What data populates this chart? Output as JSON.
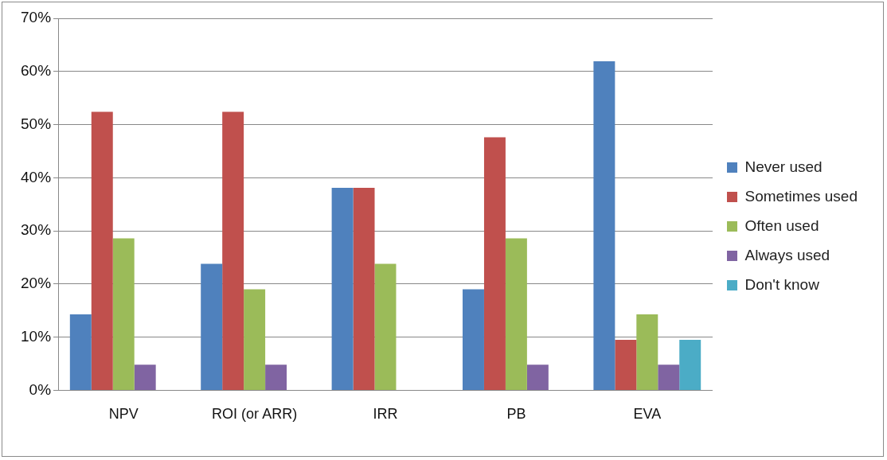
{
  "chart_data": {
    "type": "bar",
    "categories": [
      "NPV",
      "ROI (or ARR)",
      "IRR",
      "PB",
      "EVA"
    ],
    "series": [
      {
        "name": "Never used",
        "color": "#4f81bd",
        "values": [
          14.3,
          23.8,
          38.1,
          19.0,
          61.9
        ]
      },
      {
        "name": "Sometimes used",
        "color": "#c0504d",
        "values": [
          52.4,
          52.4,
          38.1,
          47.6,
          9.5
        ]
      },
      {
        "name": "Often used",
        "color": "#9bbb59",
        "values": [
          28.6,
          19.0,
          23.8,
          28.6,
          14.3
        ]
      },
      {
        "name": "Always used",
        "color": "#8064a2",
        "values": [
          4.8,
          4.8,
          0,
          4.8,
          4.8
        ]
      },
      {
        "name": "Don't know",
        "color": "#4bacc6",
        "values": [
          0,
          0,
          0,
          0,
          9.5
        ]
      }
    ],
    "ylim": [
      0,
      70
    ],
    "yticks": [
      {
        "value": 0,
        "label": "0%"
      },
      {
        "value": 10,
        "label": "10%"
      },
      {
        "value": 20,
        "label": "20%"
      },
      {
        "value": 30,
        "label": "30%"
      },
      {
        "value": 40,
        "label": "40%"
      },
      {
        "value": 50,
        "label": "50%"
      },
      {
        "value": 60,
        "label": "60%"
      },
      {
        "value": 70,
        "label": "70%"
      }
    ],
    "grid": "y",
    "legend": "right"
  }
}
